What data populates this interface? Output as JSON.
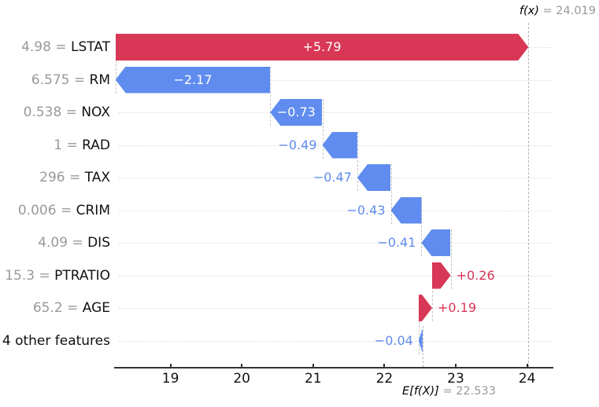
{
  "chart_data": {
    "type": "bar",
    "subtype": "shap-waterfall",
    "title": "",
    "fx": 24.019,
    "expected_value": 22.533,
    "fx_label": "f(x)",
    "fx_value_label": "= 24.019",
    "ef_label": "E[f(X)]",
    "ef_value_label": "= 22.533",
    "xticks": [
      19,
      20,
      21,
      22,
      23,
      24
    ],
    "xlim": [
      18.2,
      24.35
    ],
    "grid": "dotted horizontal row guides",
    "colors": {
      "positive": "#d83756",
      "negative": "#5f8cee",
      "value_gray": "#999999",
      "dashed_line": "#b9b9b9",
      "row_grid": "#dcdcdc",
      "axis": "#333333",
      "inside_text": "#ffffff"
    },
    "features": [
      {
        "feature": "LSTAT",
        "data_value": "4.98",
        "shap": 5.79,
        "label": "+5.79"
      },
      {
        "feature": "RM",
        "data_value": "6.575",
        "shap": -2.17,
        "label": "−2.17"
      },
      {
        "feature": "NOX",
        "data_value": "0.538",
        "shap": -0.73,
        "label": "−0.73"
      },
      {
        "feature": "RAD",
        "data_value": "1",
        "shap": -0.49,
        "label": "−0.49"
      },
      {
        "feature": "TAX",
        "data_value": "296",
        "shap": -0.47,
        "label": "−0.47"
      },
      {
        "feature": "CRIM",
        "data_value": "0.006",
        "shap": -0.43,
        "label": "−0.43"
      },
      {
        "feature": "DIS",
        "data_value": "4.09",
        "shap": -0.41,
        "label": "−0.41"
      },
      {
        "feature": "PTRATIO",
        "data_value": "15.3",
        "shap": 0.26,
        "label": "+0.26"
      },
      {
        "feature": "AGE",
        "data_value": "65.2",
        "shap": 0.19,
        "label": "+0.19"
      },
      {
        "feature": "4 other features",
        "data_value": "",
        "shap": -0.04,
        "label": "−0.04"
      }
    ]
  }
}
